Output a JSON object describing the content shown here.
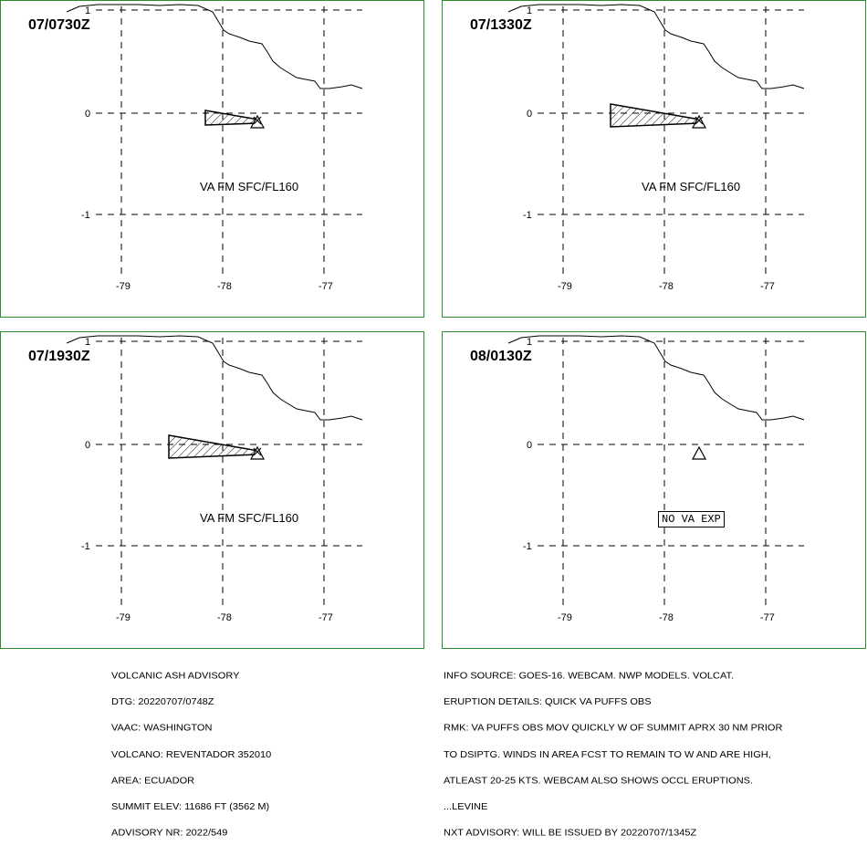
{
  "panels": [
    {
      "title": "07/0730Z",
      "label": "VA FM SFC/FL160",
      "label_style": "text",
      "plume": "small"
    },
    {
      "title": "07/1330Z",
      "label": "VA FM SFC/FL160",
      "label_style": "text",
      "plume": "large"
    },
    {
      "title": "07/1930Z",
      "label": "VA FM SFC/FL160",
      "label_style": "text",
      "plume": "large"
    },
    {
      "title": "08/0130Z",
      "label": "NO VA EXP",
      "label_style": "box",
      "plume": "none"
    }
  ],
  "axes": {
    "lat_ticks": [
      "1",
      "0",
      "-1"
    ],
    "lon_ticks": [
      "-79",
      "-78",
      "-77"
    ]
  },
  "advisory_left": [
    "VOLCANIC ASH ADVISORY",
    "DTG: 20220707/0748Z",
    "VAAC: WASHINGTON",
    "VOLCANO: REVENTADOR 352010",
    "AREA: ECUADOR",
    "SUMMIT ELEV: 11686 FT (3562 M)",
    "ADVISORY NR: 2022/549"
  ],
  "advisory_right": [
    "INFO SOURCE: GOES-16. WEBCAM. NWP MODELS. VOLCAT.",
    "ERUPTION DETAILS: QUICK VA PUFFS OBS",
    "RMK: VA PUFFS OBS MOV QUICKLY W OF SUMMIT APRX 30 NM PRIOR",
    "TO DSIPTG. WINDS IN AREA FCST TO REMAIN TO W AND ARE HIGH,",
    "ATLEAST 20-25 KTS. WEBCAM ALSO SHOWS OCCL ERUPTIONS.",
    "...LEVINE",
    "NXT ADVISORY: WILL BE ISSUED BY 20220707/1345Z"
  ]
}
